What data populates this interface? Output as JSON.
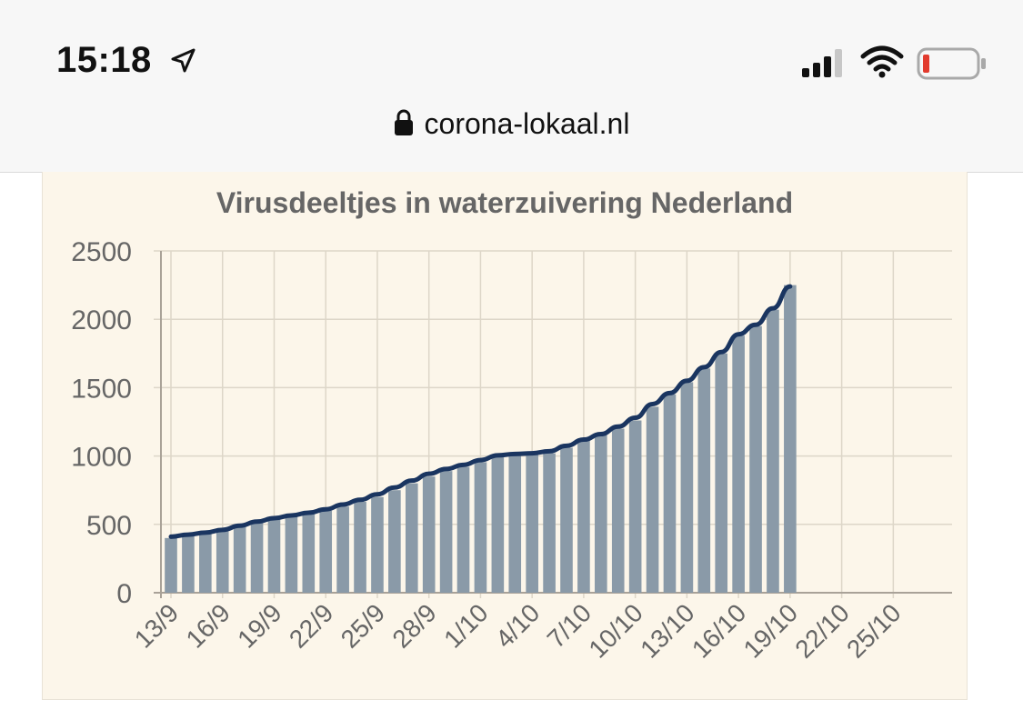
{
  "status_bar": {
    "time": "15:18",
    "icons": [
      "location-arrow-icon",
      "cellular-signal-icon",
      "wifi-icon",
      "battery-low-icon"
    ],
    "battery_color": "#e23b2e"
  },
  "browser": {
    "url": "corona-lokaal.nl",
    "lock_icon": "lock-icon"
  },
  "colors": {
    "bar": "#8a9aa8",
    "line": "#1a3560",
    "card_bg": "#fcf6ea",
    "grid": "#ddd6c8"
  },
  "chart_data": {
    "type": "bar",
    "title": "Virusdeeltjes in waterzuivering Nederland",
    "xlabel": "",
    "ylabel": "",
    "ylim": [
      0,
      2500
    ],
    "yticks": [
      0,
      500,
      1000,
      1500,
      2000,
      2500
    ],
    "xtick_labels": [
      "13/9",
      "16/9",
      "19/9",
      "22/9",
      "25/9",
      "28/9",
      "1/10",
      "4/10",
      "7/10",
      "10/10",
      "13/10",
      "16/10",
      "19/10",
      "22/10",
      "25/10"
    ],
    "grid": true,
    "categories": [
      "13/9",
      "14/9",
      "15/9",
      "16/9",
      "17/9",
      "18/9",
      "19/9",
      "20/9",
      "21/9",
      "22/9",
      "23/9",
      "24/9",
      "25/9",
      "26/9",
      "27/9",
      "28/9",
      "29/9",
      "30/9",
      "1/10",
      "2/10",
      "3/10",
      "4/10",
      "5/10",
      "6/10",
      "7/10",
      "8/10",
      "9/10",
      "10/10",
      "11/10",
      "12/10",
      "13/10",
      "14/10",
      "15/10",
      "16/10",
      "17/10",
      "18/10",
      "19/10"
    ],
    "series": [
      {
        "type": "bar",
        "values": [
          400,
          415,
          430,
          450,
          480,
          510,
          540,
          560,
          575,
          600,
          630,
          665,
          700,
          750,
          800,
          850,
          890,
          920,
          955,
          990,
          1005,
          1010,
          1020,
          1060,
          1110,
          1150,
          1200,
          1260,
          1360,
          1450,
          1540,
          1640,
          1750,
          1880,
          1950,
          2070,
          2250
        ]
      },
      {
        "type": "line",
        "values": [
          410,
          425,
          440,
          460,
          490,
          520,
          545,
          565,
          585,
          610,
          645,
          680,
          720,
          770,
          820,
          870,
          905,
          935,
          970,
          1005,
          1015,
          1020,
          1035,
          1075,
          1120,
          1160,
          1215,
          1280,
          1380,
          1460,
          1550,
          1650,
          1760,
          1890,
          1960,
          2080,
          2240
        ]
      }
    ]
  }
}
